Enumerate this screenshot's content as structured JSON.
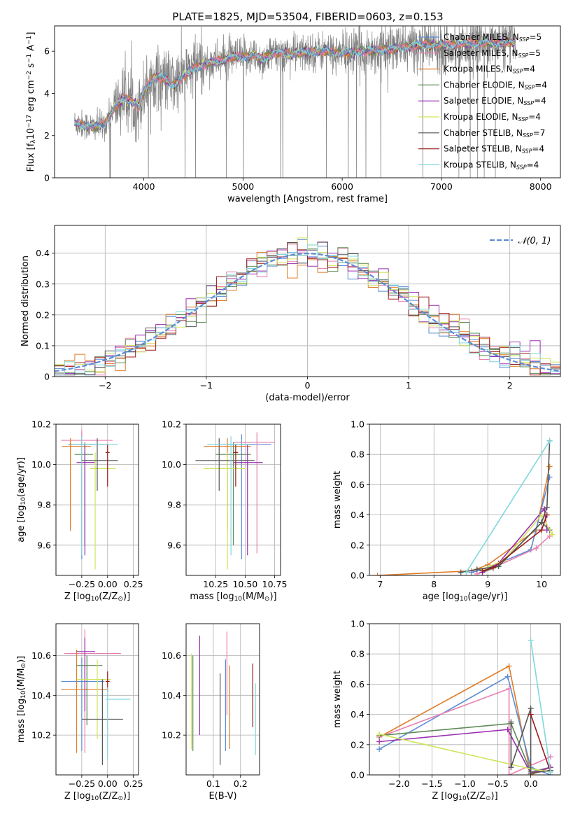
{
  "title": "PLATE=1825, MJD=53504, FIBERID=0603, z=0.153",
  "colors": {
    "chabrier_miles": "#5b8bd6",
    "salpeter_miles": "#e87fb0",
    "kroupa_miles": "#e07c27",
    "chabrier_elodie": "#5e8a57",
    "salpeter_elodie": "#9a2fb0",
    "kroupa_elodie": "#cfe45a",
    "chabrier_stelib": "#555555",
    "salpeter_stelib": "#9b1b1b",
    "kroupa_stelib": "#7fd8dc",
    "observed": "#808080",
    "normal": "#5b8bd6"
  },
  "legend": [
    {
      "key": "chabrier_miles",
      "pre": "Chabrier MILES, N",
      "sub": "SSP",
      "post": "=5"
    },
    {
      "key": "salpeter_miles",
      "pre": "Salpeter MILES, N",
      "sub": "SSP",
      "post": "=5"
    },
    {
      "key": "kroupa_miles",
      "pre": "Kroupa MILES, N",
      "sub": "SSP",
      "post": "=4"
    },
    {
      "key": "chabrier_elodie",
      "pre": "Chabrier ELODIE, N",
      "sub": "SSP",
      "post": "=4"
    },
    {
      "key": "salpeter_elodie",
      "pre": "Salpeter ELODIE, N",
      "sub": "SSP",
      "post": "=4"
    },
    {
      "key": "kroupa_elodie",
      "pre": "Kroupa ELODIE, N",
      "sub": "SSP",
      "post": "=4"
    },
    {
      "key": "chabrier_stelib",
      "pre": "Chabrier STELIB, N",
      "sub": "SSP",
      "post": "=7"
    },
    {
      "key": "salpeter_stelib",
      "pre": "Salpeter STELIB, N",
      "sub": "SSP",
      "post": "=4"
    },
    {
      "key": "kroupa_stelib",
      "pre": "Kroupa STELIB, N",
      "sub": "SSP",
      "post": "=4"
    }
  ],
  "chart_data": [
    {
      "id": "spectrum",
      "type": "line",
      "xlabel": "wavelength [Angstrom, rest frame]",
      "ylabel": {
        "pre": "Flux [f",
        "sub": "λ",
        "mid": "10",
        "sup1": "−17",
        "mid2": " erg cm",
        "sup2": "−2",
        "mid3": " s",
        "sup3": "−1",
        "mid4": " A",
        "sup4": "−1",
        "post": "]"
      },
      "xlim": [
        3100,
        8200
      ],
      "ylim": [
        0,
        7.2
      ],
      "xticks": [
        4000,
        5000,
        6000,
        7000,
        8000
      ],
      "yticks": [
        0,
        2,
        4,
        6
      ],
      "observed_range": [
        3300,
        7750
      ],
      "continuum": [
        [
          3300,
          2.6
        ],
        [
          3500,
          2.4
        ],
        [
          3600,
          2.5
        ],
        [
          3700,
          3.3
        ],
        [
          3800,
          3.8
        ],
        [
          3900,
          3.6
        ],
        [
          3950,
          3.3
        ],
        [
          4000,
          4.1
        ],
        [
          4100,
          4.8
        ],
        [
          4200,
          4.7
        ],
        [
          4300,
          4.4
        ],
        [
          4400,
          4.8
        ],
        [
          4500,
          5.2
        ],
        [
          4700,
          5.5
        ],
        [
          4900,
          5.7
        ],
        [
          5100,
          5.8
        ],
        [
          5200,
          5.6
        ],
        [
          5300,
          5.9
        ],
        [
          5500,
          5.9
        ],
        [
          5800,
          6.0
        ],
        [
          6000,
          5.9
        ],
        [
          6200,
          6.0
        ],
        [
          6500,
          6.1
        ],
        [
          6800,
          6.3
        ],
        [
          7000,
          6.3
        ],
        [
          7400,
          6.4
        ],
        [
          7750,
          6.4
        ]
      ]
    },
    {
      "id": "residuals",
      "type": "histogram",
      "xlabel": "(data-model)/error",
      "ylabel": "Normed distribution",
      "xlim": [
        -2.5,
        2.5
      ],
      "ylim": [
        0,
        0.49
      ],
      "xticks": [
        -2,
        -1,
        0,
        1,
        2
      ],
      "yticks": [
        0,
        0.1,
        0.2,
        0.3,
        0.4
      ],
      "legend_label": "𝒩(0, 1)",
      "bin_width": 0.1
    },
    {
      "id": "age_vs_Z",
      "type": "errorbar",
      "xlabel": {
        "pre": "Z [log",
        "sub": "10",
        "mid": "(Z/Z",
        "sub2": "⊙",
        "post": ")]"
      },
      "ylabel": {
        "pre": "age  [log",
        "sub": "10",
        "post": "(age/yr)]"
      },
      "xlim": [
        -0.5,
        0.3
      ],
      "ylim": [
        9.45,
        10.2
      ],
      "xticks": [
        -0.25,
        0.0,
        0.25
      ],
      "xtick_labels": [
        "−0.25",
        "0.00",
        "0.25"
      ],
      "yticks": [
        9.6,
        9.8,
        10.0,
        10.2
      ],
      "points": [
        {
          "key": "chabrier_miles",
          "x": -0.25,
          "xerr": [
            0.13,
            0.25
          ],
          "y": 10.1,
          "yerr": [
            0.57,
            0.05
          ]
        },
        {
          "key": "salpeter_miles",
          "x": -0.25,
          "xerr": [
            0.2,
            0.3
          ],
          "y": 10.12,
          "yerr": [
            0.55,
            0.05
          ]
        },
        {
          "key": "kroupa_miles",
          "x": -0.36,
          "xerr": [
            0.08,
            0.2
          ],
          "y": 10.09,
          "yerr": [
            0.42,
            0.04
          ]
        },
        {
          "key": "chabrier_elodie",
          "x": -0.22,
          "xerr": [
            0.1,
            0.08
          ],
          "y": 10.05,
          "yerr": [
            0.45,
            0.06
          ]
        },
        {
          "key": "salpeter_elodie",
          "x": -0.22,
          "xerr": [
            0.08,
            0.1
          ],
          "y": 10.01,
          "yerr": [
            0.46,
            0.09
          ]
        },
        {
          "key": "kroupa_elodie",
          "x": -0.12,
          "xerr": [
            0.05,
            0.2
          ],
          "y": 9.98,
          "yerr": [
            0.5,
            0.08
          ]
        },
        {
          "key": "chabrier_stelib",
          "x": -0.1,
          "xerr": [
            0.15,
            0.2
          ],
          "y": 10.02,
          "yerr": [
            0.15,
            0.11
          ]
        },
        {
          "key": "salpeter_stelib",
          "x": 0.0,
          "xerr": [
            0.02,
            0.02
          ],
          "y": 10.06,
          "yerr": [
            0.17,
            0.04
          ]
        },
        {
          "key": "kroupa_stelib",
          "x": -0.25,
          "xerr": [
            0.1,
            0.35
          ],
          "y": 10.1,
          "yerr": [
            0.55,
            0.04
          ]
        }
      ]
    },
    {
      "id": "age_vs_mass",
      "type": "errorbar",
      "xlabel": {
        "pre": "mass [log",
        "sub": "10",
        "mid": "(M/M",
        "sub2": "⊙",
        "post": ")]"
      },
      "xlim": [
        10.0,
        10.8
      ],
      "ylim": [
        9.45,
        10.2
      ],
      "xticks": [
        10.25,
        10.5,
        10.75
      ],
      "xtick_labels": [
        "10.25",
        "10.50",
        "10.75"
      ],
      "yticks": [
        9.6,
        9.8,
        10.0,
        10.2
      ],
      "points": [
        {
          "key": "chabrier_miles",
          "x": 10.47,
          "xerr": [
            0.2,
            0.25
          ],
          "y": 10.1,
          "yerr": [
            0.57,
            0.05
          ]
        },
        {
          "key": "salpeter_miles",
          "x": 10.6,
          "xerr": [
            0.2,
            0.15
          ],
          "y": 10.11,
          "yerr": [
            0.55,
            0.05
          ]
        },
        {
          "key": "kroupa_miles",
          "x": 10.35,
          "xerr": [
            0.2,
            0.2
          ],
          "y": 10.09,
          "yerr": [
            0.42,
            0.04
          ]
        },
        {
          "key": "chabrier_elodie",
          "x": 10.4,
          "xerr": [
            0.15,
            0.15
          ],
          "y": 10.05,
          "yerr": [
            0.45,
            0.06
          ]
        },
        {
          "key": "salpeter_elodie",
          "x": 10.52,
          "xerr": [
            0.12,
            0.13
          ],
          "y": 10.01,
          "yerr": [
            0.46,
            0.09
          ]
        },
        {
          "key": "kroupa_elodie",
          "x": 10.35,
          "xerr": [
            0.2,
            0.15
          ],
          "y": 9.98,
          "yerr": [
            0.5,
            0.08
          ]
        },
        {
          "key": "chabrier_stelib",
          "x": 10.28,
          "xerr": [
            0.2,
            0.3
          ],
          "y": 10.02,
          "yerr": [
            0.15,
            0.11
          ]
        },
        {
          "key": "salpeter_stelib",
          "x": 10.42,
          "xerr": [
            0.02,
            0.02
          ],
          "y": 10.06,
          "yerr": [
            0.17,
            0.04
          ]
        },
        {
          "key": "kroupa_stelib",
          "x": 10.38,
          "xerr": [
            0.2,
            0.15
          ],
          "y": 10.1,
          "yerr": [
            0.55,
            0.04
          ]
        }
      ]
    },
    {
      "id": "massweight_vs_age",
      "type": "line",
      "xlabel": {
        "pre": "age  [log",
        "sub": "10",
        "post": "(age/yr)]"
      },
      "ylabel": "mass weight",
      "xlim": [
        6.8,
        10.35
      ],
      "ylim": [
        0,
        1.0
      ],
      "xticks": [
        7,
        8,
        9,
        10
      ],
      "yticks": [
        0.0,
        0.2,
        0.4,
        0.6,
        0.8,
        1.0
      ],
      "series": [
        {
          "key": "kroupa_miles",
          "x": [
            6.95,
            8.7,
            9.0,
            9.9,
            10.15
          ],
          "y": [
            0.0,
            0.03,
            0.07,
            0.3,
            0.72
          ]
        },
        {
          "key": "chabrier_miles",
          "x": [
            8.7,
            9.0,
            9.8,
            10.15
          ],
          "y": [
            0.02,
            0.05,
            0.17,
            0.65
          ]
        },
        {
          "key": "salpeter_miles",
          "x": [
            8.8,
            9.1,
            9.9,
            10.15
          ],
          "y": [
            0.01,
            0.05,
            0.18,
            0.26
          ]
        },
        {
          "key": "chabrier_elodie",
          "x": [
            8.9,
            9.2,
            10.0,
            10.15
          ],
          "y": [
            0.02,
            0.06,
            0.35,
            0.3
          ]
        },
        {
          "key": "salpeter_elodie",
          "x": [
            8.9,
            9.2,
            10.05,
            10.1
          ],
          "y": [
            0.02,
            0.08,
            0.44,
            0.3
          ]
        },
        {
          "key": "kroupa_elodie",
          "x": [
            8.9,
            9.3,
            10.0,
            10.2
          ],
          "y": [
            0.04,
            0.1,
            0.4,
            0.27
          ]
        },
        {
          "key": "chabrier_stelib",
          "x": [
            8.5,
            8.8,
            9.2,
            10.0,
            10.1,
            10.15
          ],
          "y": [
            0.02,
            0.04,
            0.06,
            0.35,
            0.45,
            0.89
          ]
        },
        {
          "key": "salpeter_stelib",
          "x": [
            8.9,
            9.1,
            10.0,
            10.1
          ],
          "y": [
            0.03,
            0.05,
            0.3,
            0.4
          ]
        },
        {
          "key": "kroupa_stelib",
          "x": [
            8.6,
            10.15
          ],
          "y": [
            0.02,
            0.89
          ]
        }
      ]
    },
    {
      "id": "mass_vs_Z",
      "type": "errorbar",
      "xlabel": {
        "pre": "Z [log",
        "sub": "10",
        "mid": "(Z/Z",
        "sub2": "⊙",
        "post": ")]"
      },
      "ylabel": {
        "pre": "mass [log",
        "sub": "10",
        "mid": "(M/M",
        "sub2": "⊙",
        "post": ")]"
      },
      "xlim": [
        -0.5,
        0.3
      ],
      "ylim": [
        10.0,
        10.76
      ],
      "xticks": [
        -0.25,
        0.0,
        0.25
      ],
      "xtick_labels": [
        "−0.25",
        "0.00",
        "0.25"
      ],
      "yticks": [
        10.2,
        10.4,
        10.6
      ],
      "points": [
        {
          "key": "chabrier_miles",
          "x": -0.25,
          "xerr": [
            0.2,
            0.22
          ],
          "y": 10.47,
          "yerr": [
            0.35,
            0.12
          ]
        },
        {
          "key": "salpeter_miles",
          "x": -0.22,
          "xerr": [
            0.2,
            0.35
          ],
          "y": 10.61,
          "yerr": [
            0.5,
            0.12
          ]
        },
        {
          "key": "kroupa_miles",
          "x": -0.3,
          "xerr": [
            0.15,
            0.3
          ],
          "y": 10.43,
          "yerr": [
            0.32,
            0.2
          ]
        },
        {
          "key": "chabrier_elodie",
          "x": -0.2,
          "xerr": [
            0.1,
            0.15
          ],
          "y": 10.55,
          "yerr": [
            0.3,
            0.05
          ]
        },
        {
          "key": "salpeter_elodie",
          "x": -0.22,
          "xerr": [
            0.08,
            0.1
          ],
          "y": 10.62,
          "yerr": [
            0.3,
            0.07
          ]
        },
        {
          "key": "kroupa_elodie",
          "x": -0.1,
          "xerr": [
            0.2,
            0.13
          ],
          "y": 10.48,
          "yerr": [
            0.3,
            0.1
          ]
        },
        {
          "key": "chabrier_stelib",
          "x": -0.05,
          "xerr": [
            0.2,
            0.2
          ],
          "y": 10.28,
          "yerr": [
            0.23,
            0.2
          ]
        },
        {
          "key": "salpeter_stelib",
          "x": 0.0,
          "xerr": [
            0.02,
            0.02
          ],
          "y": 10.47,
          "yerr": [
            0.05,
            0.05
          ]
        },
        {
          "key": "kroupa_stelib",
          "x": 0.0,
          "xerr": [
            0.02,
            0.22
          ],
          "y": 10.38,
          "yerr": [
            0.3,
            0.06
          ]
        }
      ]
    },
    {
      "id": "mass_vs_ebv",
      "type": "errorbar",
      "xlabel": "E(B-V)",
      "xlim": [
        0.0,
        0.27
      ],
      "ylim": [
        10.0,
        10.76
      ],
      "xticks": [
        0.1,
        0.2
      ],
      "xtick_labels": [
        "0.1",
        "0.2"
      ],
      "yticks": [
        10.2,
        10.4,
        10.6
      ],
      "points": [
        {
          "key": "kroupa_elodie",
          "x": 0.02,
          "y": 10.41,
          "yerr": [
            0.28,
            0.2
          ]
        },
        {
          "key": "chabrier_elodie",
          "x": 0.025,
          "y": 10.37,
          "yerr": [
            0.25,
            0.23
          ]
        },
        {
          "key": "salpeter_elodie",
          "x": 0.05,
          "y": 10.5,
          "yerr": [
            0.3,
            0.2
          ]
        },
        {
          "key": "chabrier_stelib",
          "x": 0.125,
          "y": 10.28,
          "yerr": [
            0.23,
            0.23
          ]
        },
        {
          "key": "chabrier_miles",
          "x": 0.145,
          "y": 10.35,
          "yerr": [
            0.23,
            0.23
          ]
        },
        {
          "key": "salpeter_miles",
          "x": 0.15,
          "y": 10.5,
          "yerr": [
            0.2,
            0.22
          ]
        },
        {
          "key": "kroupa_miles",
          "x": 0.16,
          "y": 10.35,
          "yerr": [
            0.22,
            0.2
          ]
        },
        {
          "key": "salpeter_stelib",
          "x": 0.245,
          "y": 10.4,
          "yerr": [
            0.16,
            0.16
          ]
        },
        {
          "key": "kroupa_stelib",
          "x": 0.255,
          "y": 10.28,
          "yerr": [
            0.18,
            0.18
          ]
        }
      ]
    },
    {
      "id": "massweight_vs_Z",
      "type": "line",
      "xlabel": {
        "pre": "Z [log",
        "sub": "10",
        "mid": "(Z/Z",
        "sub2": "⊙",
        "post": ")]"
      },
      "ylabel": "mass weight",
      "xlim": [
        -2.45,
        0.45
      ],
      "ylim": [
        0,
        1.0
      ],
      "xticks": [
        -2.0,
        -1.5,
        -1.0,
        -0.5,
        0.0
      ],
      "xtick_labels": [
        "−2.0",
        "−1.5",
        "−1.0",
        "−0.5",
        "0.0"
      ],
      "yticks": [
        0.0,
        0.2,
        0.4,
        0.6,
        0.8,
        1.0
      ],
      "series": [
        {
          "key": "kroupa_miles",
          "x": [
            -2.3,
            -0.33,
            0.0,
            0.3
          ],
          "y": [
            0.25,
            0.72,
            0.0,
            0.05
          ]
        },
        {
          "key": "chabrier_miles",
          "x": [
            -2.3,
            -0.35,
            0.0,
            0.3
          ],
          "y": [
            0.17,
            0.65,
            0.05,
            0.0
          ]
        },
        {
          "key": "salpeter_miles",
          "x": [
            -2.3,
            -0.33,
            -0.33,
            0.3
          ],
          "y": [
            0.25,
            0.57,
            0.0,
            0.12
          ]
        },
        {
          "key": "chabrier_elodie",
          "x": [
            -2.3,
            -0.3,
            0.0,
            0.3
          ],
          "y": [
            0.26,
            0.34,
            0.02,
            0.05
          ]
        },
        {
          "key": "salpeter_elodie",
          "x": [
            -2.3,
            -0.35,
            0.0,
            0.3
          ],
          "y": [
            0.22,
            0.3,
            0.01,
            0.05
          ]
        },
        {
          "key": "kroupa_elodie",
          "x": [
            -2.3,
            0.0,
            0.3
          ],
          "y": [
            0.27,
            0.04,
            0.02
          ]
        },
        {
          "key": "chabrier_stelib",
          "x": [
            -0.3,
            -0.3,
            0.0,
            0.0,
            0.3
          ],
          "y": [
            0.35,
            0.05,
            0.44,
            0.01,
            0.03
          ]
        },
        {
          "key": "salpeter_stelib",
          "x": [
            0.0,
            0.3
          ],
          "y": [
            0.4,
            0.02
          ]
        },
        {
          "key": "kroupa_stelib",
          "x": [
            0.0,
            0.3
          ],
          "y": [
            0.89,
            0.02
          ]
        }
      ]
    }
  ]
}
